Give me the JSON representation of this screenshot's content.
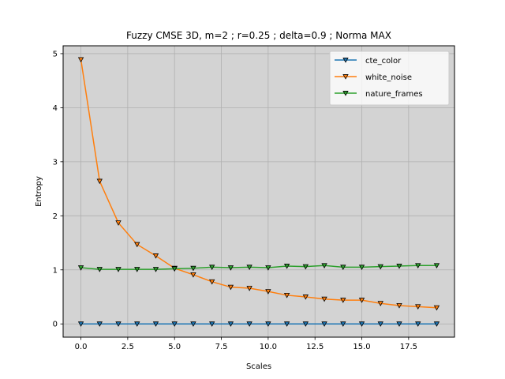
{
  "chart_data": {
    "type": "line",
    "title": "Fuzzy CMSE 3D, m=2 ; r=0.25 ; delta=0.9 ; Norma MAX",
    "xlabel": "Scales",
    "ylabel": "Entropy",
    "xlim": [
      -0.95,
      19.95
    ],
    "ylim": [
      -0.245,
      5.145
    ],
    "xticks": [
      0.0,
      2.5,
      5.0,
      7.5,
      10.0,
      12.5,
      15.0,
      17.5
    ],
    "xtick_labels": [
      "0.0",
      "2.5",
      "5.0",
      "7.5",
      "10.0",
      "12.5",
      "15.0",
      "17.5"
    ],
    "yticks": [
      0,
      1,
      2,
      3,
      4,
      5
    ],
    "ytick_labels": [
      "0",
      "1",
      "2",
      "3",
      "4",
      "5"
    ],
    "grid": true,
    "background": "#d3d3d3",
    "legend_position": "top-right",
    "marker": "triangle-down",
    "x": [
      0,
      1,
      2,
      3,
      4,
      5,
      6,
      7,
      8,
      9,
      10,
      11,
      12,
      13,
      14,
      15,
      16,
      17,
      18,
      19
    ],
    "series": [
      {
        "name": "cte_color",
        "color": "#1f77b4",
        "values": [
          0,
          0,
          0,
          0,
          0,
          0,
          0,
          0,
          0,
          0,
          0,
          0,
          0,
          0,
          0,
          0,
          0,
          0,
          0,
          0
        ]
      },
      {
        "name": "white_noise",
        "color": "#ff7f0e",
        "values": [
          4.89,
          2.64,
          1.87,
          1.47,
          1.26,
          1.03,
          0.91,
          0.78,
          0.68,
          0.66,
          0.6,
          0.53,
          0.5,
          0.46,
          0.44,
          0.44,
          0.38,
          0.34,
          0.32,
          0.3
        ]
      },
      {
        "name": "nature_frames",
        "color": "#2ca02c",
        "values": [
          1.04,
          1.01,
          1.01,
          1.01,
          1.01,
          1.02,
          1.03,
          1.05,
          1.04,
          1.05,
          1.04,
          1.07,
          1.06,
          1.08,
          1.05,
          1.05,
          1.06,
          1.07,
          1.08,
          1.08
        ]
      }
    ]
  }
}
